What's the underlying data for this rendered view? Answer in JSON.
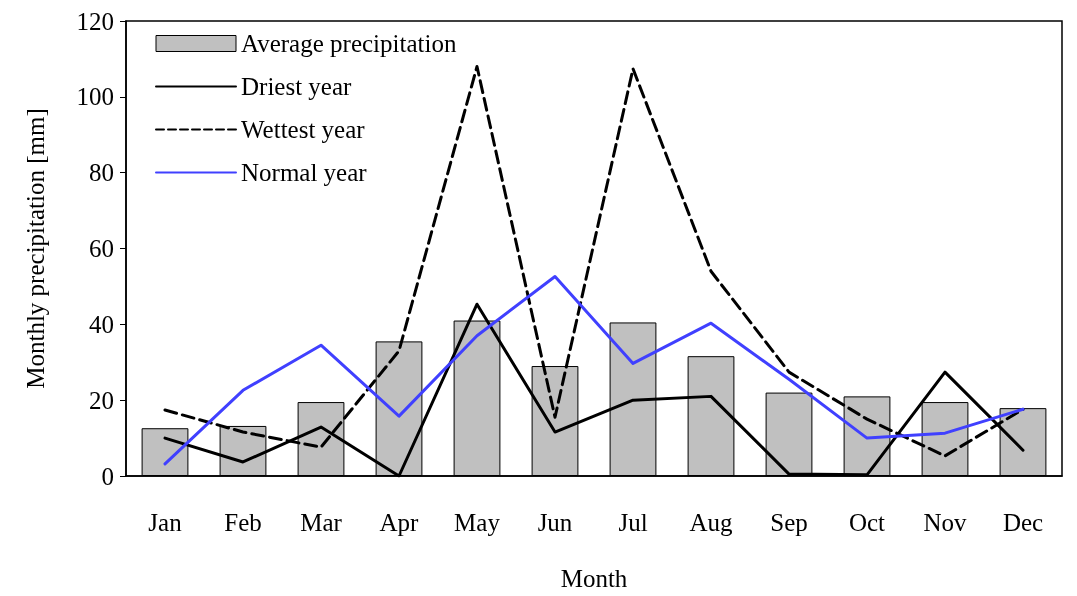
{
  "chart_data": {
    "type": "bar",
    "xlabel": "Month",
    "ylabel": "Monthly precipitation [mm]",
    "categories": [
      "Jan",
      "Feb",
      "Mar",
      "Apr",
      "May",
      "Jun",
      "Jul",
      "Aug",
      "Sep",
      "Oct",
      "Nov",
      "Dec"
    ],
    "series": [
      {
        "name": "Average precipitation",
        "color": "#c0c0c0",
        "values": [
          12.6,
          13.2,
          19.5,
          35.5,
          41,
          29,
          40.5,
          31.6,
          22,
          21,
          19.5,
          17.9
        ]
      },
      {
        "name": "Driest year",
        "type": "line",
        "color": "#000000",
        "line_style": "solid",
        "values": [
          10,
          3.7,
          12.9,
          0,
          45.3,
          11.6,
          20,
          21,
          0.5,
          0.3,
          27.4,
          6.8
        ]
      },
      {
        "name": "Wettest year",
        "type": "line",
        "color": "#000000",
        "line_style": "dashed",
        "values": [
          17.4,
          11.6,
          7.6,
          33,
          108,
          15.5,
          107.4,
          54,
          27.4,
          15,
          5.3,
          17.6
        ]
      },
      {
        "name": "Normal year",
        "type": "line",
        "color": "#4040ff",
        "line_style": "solid",
        "values": [
          3.2,
          22.6,
          34.5,
          15.8,
          37,
          52.6,
          29.7,
          40.3,
          25.5,
          10,
          11.3,
          17.6
        ]
      }
    ],
    "ylim": [
      0,
      120
    ],
    "yticks": [
      0,
      20,
      40,
      60,
      80,
      100,
      120
    ],
    "grid": false,
    "legend": "top left",
    "marker": "none"
  }
}
